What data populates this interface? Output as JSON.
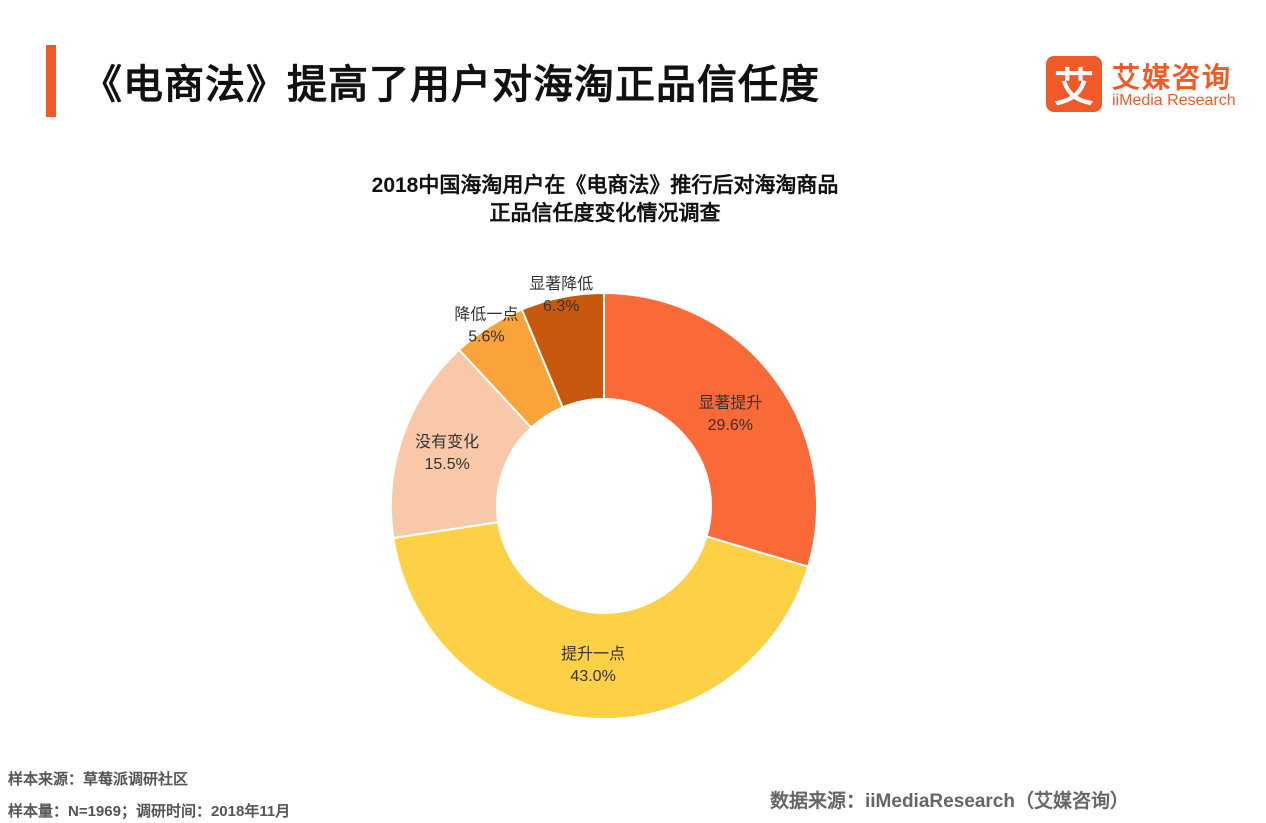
{
  "header": {
    "title": "《电商法》提高了用户对海淘正品信任度",
    "accent_color": "#F05A28"
  },
  "logo": {
    "glyph": "艾",
    "name_cn": "艾媒咨询",
    "name_en": "iiMedia Research",
    "color": "#F05A28"
  },
  "chart_data": {
    "type": "pie",
    "donut": true,
    "title_lines": [
      "2018中国海淘用户在《电商法》推行后对海淘商品",
      "正品信任度变化情况调查"
    ],
    "unit": "%",
    "start": "top",
    "direction": "clockwise",
    "slices": [
      {
        "label": "显著提升",
        "value": 29.6,
        "display": "29.6%",
        "color": "#F96A38"
      },
      {
        "label": "提升一点",
        "value": 43.0,
        "display": "43.0%",
        "color": "#FDD046"
      },
      {
        "label": "没有变化",
        "value": 15.5,
        "display": "15.5%",
        "color": "#F8C8A8"
      },
      {
        "label": "降低一点",
        "value": 5.6,
        "display": "5.6%",
        "color": "#F9A33A"
      },
      {
        "label": "显著降低",
        "value": 6.3,
        "display": "6.3%",
        "color": "#C8580E"
      }
    ]
  },
  "footer": {
    "sample_source": "样本来源：草莓派调研社区",
    "sample_info": "样本量：N=1969；调研时间：2018年11月",
    "data_source": "数据来源：iiMediaResearch（艾媒咨询）"
  }
}
